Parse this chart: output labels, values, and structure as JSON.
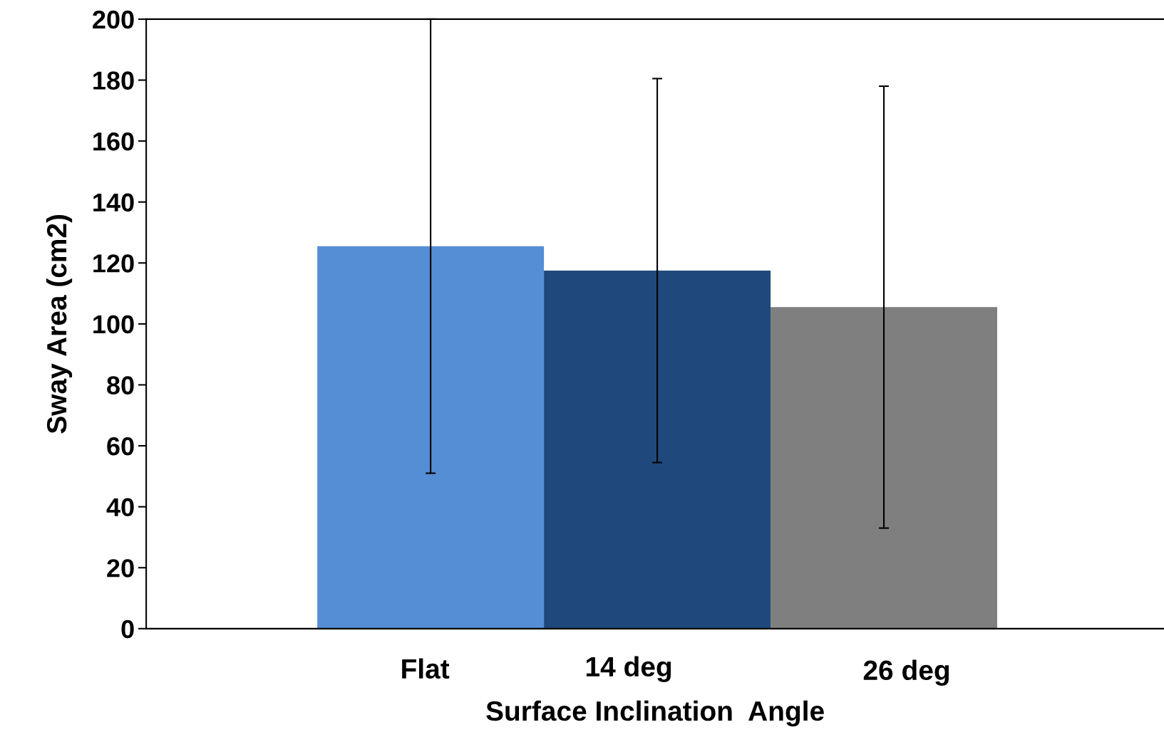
{
  "chart_data": {
    "type": "bar",
    "xlabel": "Surface Inclination  Angle",
    "ylabel": "Sway Area (cm2)",
    "categories": [
      "Flat",
      "14 deg",
      "26 deg"
    ],
    "values": [
      125.5,
      117.5,
      105.5
    ],
    "colors": [
      "#558ed5",
      "#1f497d",
      "#7f7f7f"
    ],
    "errors": [
      74.5,
      63,
      72.5
    ],
    "ylim": [
      0,
      200
    ],
    "yticks": [
      0,
      20,
      40,
      60,
      80,
      100,
      120,
      140,
      160,
      180,
      200
    ],
    "grid": false,
    "legend": false
  }
}
